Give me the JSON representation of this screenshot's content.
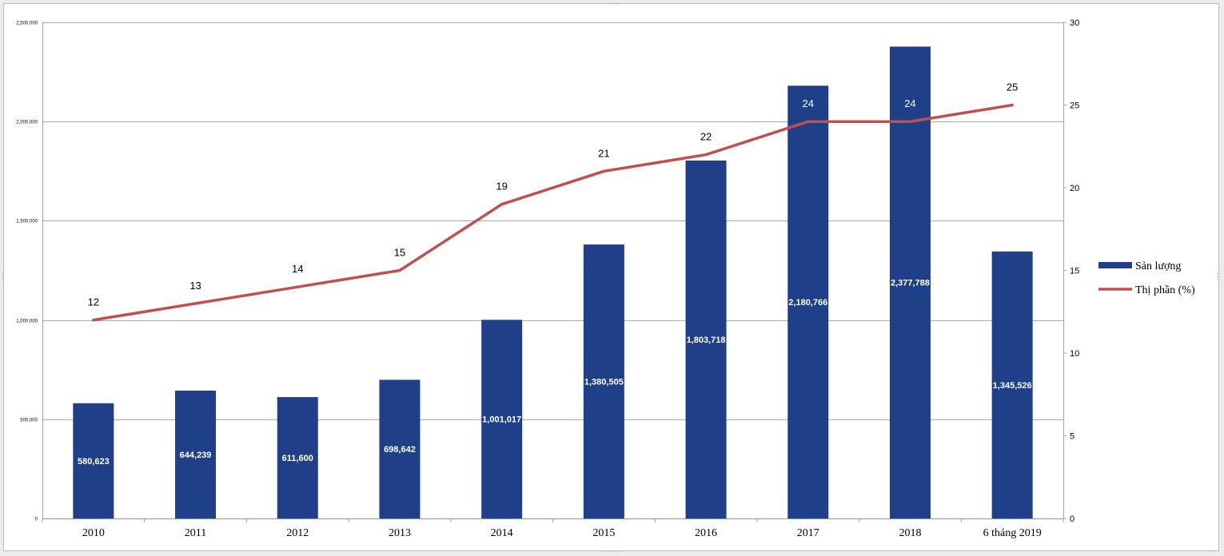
{
  "chart_data": {
    "type": "bar",
    "categories": [
      "2010",
      "2011",
      "2012",
      "2013",
      "2014",
      "2015",
      "2016",
      "2017",
      "2018",
      "6 tháng 2019"
    ],
    "series": [
      {
        "name": "Sản lượng",
        "type": "bar",
        "axis": "left",
        "color": "#1F3F88",
        "values": [
          580623,
          644239,
          611600,
          698642,
          1001017,
          1380505,
          1803718,
          2180766,
          2377788,
          1345526
        ],
        "labels": [
          "580,623",
          "644,239",
          "611,600",
          "698,642",
          "1,001,017",
          "1,380,505",
          "1,803,718",
          "2,180,766",
          "2,377,788",
          "1,345,526"
        ]
      },
      {
        "name": "Thị phần (%)",
        "type": "line",
        "axis": "right",
        "color": "#C0504D",
        "values": [
          12,
          13,
          14,
          15,
          19,
          21,
          22,
          24,
          24,
          25
        ]
      }
    ],
    "y_left": {
      "min": 0,
      "max": 2500000,
      "ticks": [
        0,
        500000,
        1000000,
        1500000,
        2000000,
        2500000
      ],
      "tick_labels": [
        "0",
        "500,000",
        "1,000,000",
        "1,500,000",
        "2,000,000",
        "2,500,000"
      ]
    },
    "y_right": {
      "min": 0,
      "max": 30,
      "ticks": [
        0,
        5,
        10,
        15,
        20,
        25,
        30
      ],
      "tick_labels": [
        "0",
        "5",
        "10",
        "15",
        "20",
        "25",
        "30"
      ]
    },
    "grid": true,
    "legend": {
      "position": "right",
      "items": [
        "Sản lượng",
        "Thị phần (%)"
      ]
    }
  }
}
